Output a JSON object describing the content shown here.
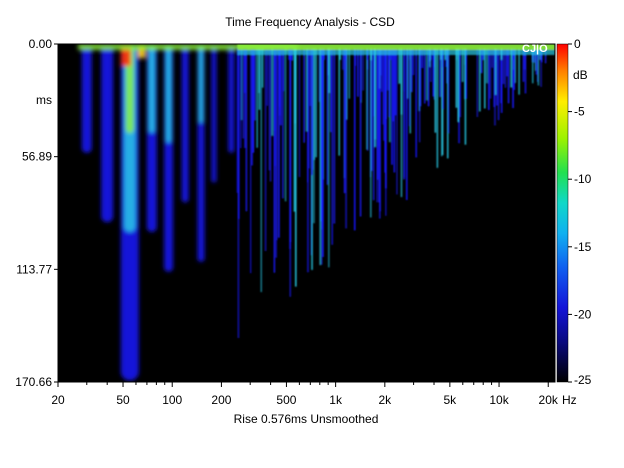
{
  "chart_data": {
    "type": "heatmap",
    "title": "Time Frequency Analysis - CSD",
    "xlabel": "Rise 0.576ms   Unsmoothed",
    "x_unit": "Hz",
    "y_unit": "ms",
    "x_scale": "log",
    "xlim": [
      20,
      22000
    ],
    "ylim": [
      0.0,
      170.66
    ],
    "x_ticks": [
      "20",
      "50",
      "100",
      "200",
      "500",
      "1k",
      "2k",
      "5k",
      "10k",
      "20k"
    ],
    "y_ticks": [
      "0.00",
      "56.89",
      "113.77",
      "170.66"
    ],
    "colorbar": {
      "label": "dB",
      "ticks": [
        "0",
        "-5",
        "-10",
        "-15",
        "-20",
        "-25"
      ],
      "range": [
        -25,
        0
      ]
    },
    "watermark": "CJ|O",
    "colors": {
      "background": "#000000",
      "low": "#1a1aff",
      "mid": "#27c9e6",
      "high": "#8cf23c",
      "peak": "#ff2a00"
    }
  }
}
